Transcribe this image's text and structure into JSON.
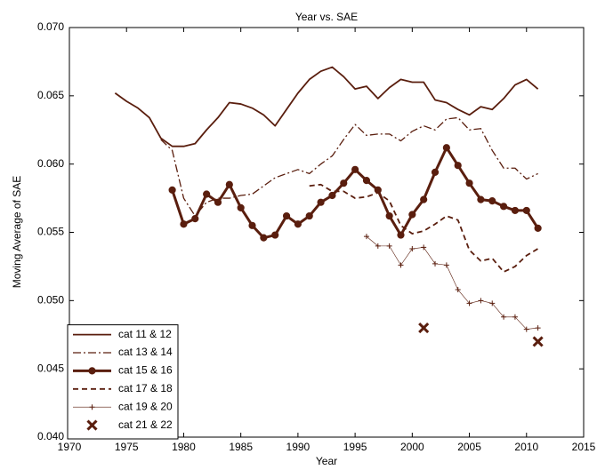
{
  "chart_data": {
    "type": "line",
    "title": "Year vs. SAE",
    "x_label": "Year",
    "y_label": "Moving Average of SAE",
    "x": [
      1974,
      1975,
      1976,
      1977,
      1978,
      1979,
      1980,
      1981,
      1982,
      1983,
      1984,
      1985,
      1986,
      1987,
      1988,
      1989,
      1990,
      1991,
      1992,
      1993,
      1994,
      1995,
      1996,
      1997,
      1998,
      1999,
      2000,
      2001,
      2002,
      2003,
      2004,
      2005,
      2006,
      2007,
      2008,
      2009,
      2010,
      2011
    ],
    "series": [
      {
        "name": "cat 11 & 12",
        "color": "#5a1e0e",
        "line_style": "solid",
        "line_width": 1.8,
        "marker": "none",
        "values": [
          0.0652,
          0.0646,
          0.0641,
          0.0634,
          0.0619,
          0.0613,
          0.0613,
          0.0615,
          0.0625,
          0.0634,
          0.0645,
          0.0644,
          0.0641,
          0.0636,
          0.0628,
          0.064,
          0.0652,
          0.0662,
          0.0668,
          0.0671,
          0.0664,
          0.0655,
          0.0657,
          0.0648,
          0.0656,
          0.0662,
          0.066,
          0.066,
          0.0647,
          0.0645,
          0.064,
          0.0636,
          0.0642,
          0.064,
          0.0648,
          0.0658,
          0.0662,
          0.0655
        ]
      },
      {
        "name": "cat 13 & 14",
        "color": "#5a1e0e",
        "line_style": "dashdot",
        "line_width": 1.3,
        "marker": "none",
        "values": [
          null,
          null,
          null,
          null,
          0.0618,
          0.061,
          0.0575,
          0.0562,
          0.0572,
          0.0575,
          0.0575,
          0.0577,
          0.0578,
          0.0584,
          0.059,
          0.0593,
          0.0596,
          0.0593,
          0.06,
          0.0606,
          0.0618,
          0.0629,
          0.0621,
          0.0622,
          0.0622,
          0.0617,
          0.0624,
          0.0628,
          0.0625,
          0.0633,
          0.0634,
          0.0625,
          0.0626,
          0.061,
          0.0597,
          0.0597,
          0.0589,
          0.0593
        ]
      },
      {
        "name": "cat 15 & 16",
        "color": "#5a1e0e",
        "line_style": "solid",
        "line_width": 3,
        "marker": "circle",
        "values": [
          null,
          null,
          null,
          null,
          null,
          0.0581,
          0.0556,
          0.056,
          0.0578,
          0.0572,
          0.0585,
          0.0568,
          0.0555,
          0.0546,
          0.0548,
          0.0562,
          0.0556,
          0.0562,
          0.0572,
          0.0577,
          0.0586,
          0.0596,
          0.0588,
          0.0581,
          0.0562,
          0.0548,
          0.0563,
          0.0574,
          0.0594,
          0.0612,
          0.0599,
          0.0586,
          0.0574,
          0.0573,
          0.0569,
          0.0566,
          0.0566,
          0.0553
        ]
      },
      {
        "name": "cat 17 & 18",
        "color": "#5a1e0e",
        "line_style": "dashed",
        "line_width": 1.8,
        "marker": "none",
        "values": [
          null,
          null,
          null,
          null,
          null,
          null,
          null,
          null,
          null,
          null,
          null,
          null,
          null,
          null,
          null,
          null,
          null,
          0.0584,
          0.0585,
          0.058,
          0.058,
          0.0575,
          0.0576,
          0.0579,
          0.0573,
          0.0555,
          0.0549,
          0.0551,
          0.0556,
          0.0562,
          0.0559,
          0.0537,
          0.0529,
          0.0531,
          0.0521,
          0.0525,
          0.0533,
          0.0538
        ]
      },
      {
        "name": "cat 19 & 20",
        "color": "#5a1e0e",
        "line_style": "solid",
        "line_width": 0.6,
        "marker": "plus",
        "values": [
          null,
          null,
          null,
          null,
          null,
          null,
          null,
          null,
          null,
          null,
          null,
          null,
          null,
          null,
          null,
          null,
          null,
          null,
          null,
          null,
          null,
          null,
          0.0547,
          0.054,
          0.054,
          0.0526,
          0.0538,
          0.0539,
          0.0527,
          0.0526,
          0.0508,
          0.0498,
          0.05,
          0.0498,
          0.0488,
          0.0488,
          0.0479,
          0.048
        ]
      },
      {
        "name": "cat 21 & 22",
        "color": "#5a1e0e",
        "line_style": "none",
        "line_width": 3,
        "marker": "x",
        "values": [
          null,
          null,
          null,
          null,
          null,
          null,
          null,
          null,
          null,
          null,
          null,
          null,
          null,
          null,
          null,
          null,
          null,
          null,
          null,
          null,
          null,
          null,
          null,
          null,
          null,
          null,
          null,
          0.048,
          null,
          null,
          null,
          null,
          null,
          null,
          null,
          null,
          null,
          0.047
        ]
      }
    ],
    "xlim": [
      1970,
      2015
    ],
    "xticks": [
      1970,
      1975,
      1980,
      1985,
      1990,
      1995,
      2000,
      2005,
      2010,
      2015
    ],
    "ylim": [
      0.04,
      0.07
    ],
    "yticks": [
      {
        "value": 0.04,
        "label": "0.040"
      },
      {
        "value": 0.045,
        "label": "0.045"
      },
      {
        "value": 0.05,
        "label": "0.050"
      },
      {
        "value": 0.055,
        "label": "0.055"
      },
      {
        "value": 0.06,
        "label": "0.060"
      },
      {
        "value": 0.065,
        "label": "0.065"
      },
      {
        "value": 0.07,
        "label": "0.070"
      }
    ],
    "grid": false,
    "legend_position": "lower left"
  }
}
